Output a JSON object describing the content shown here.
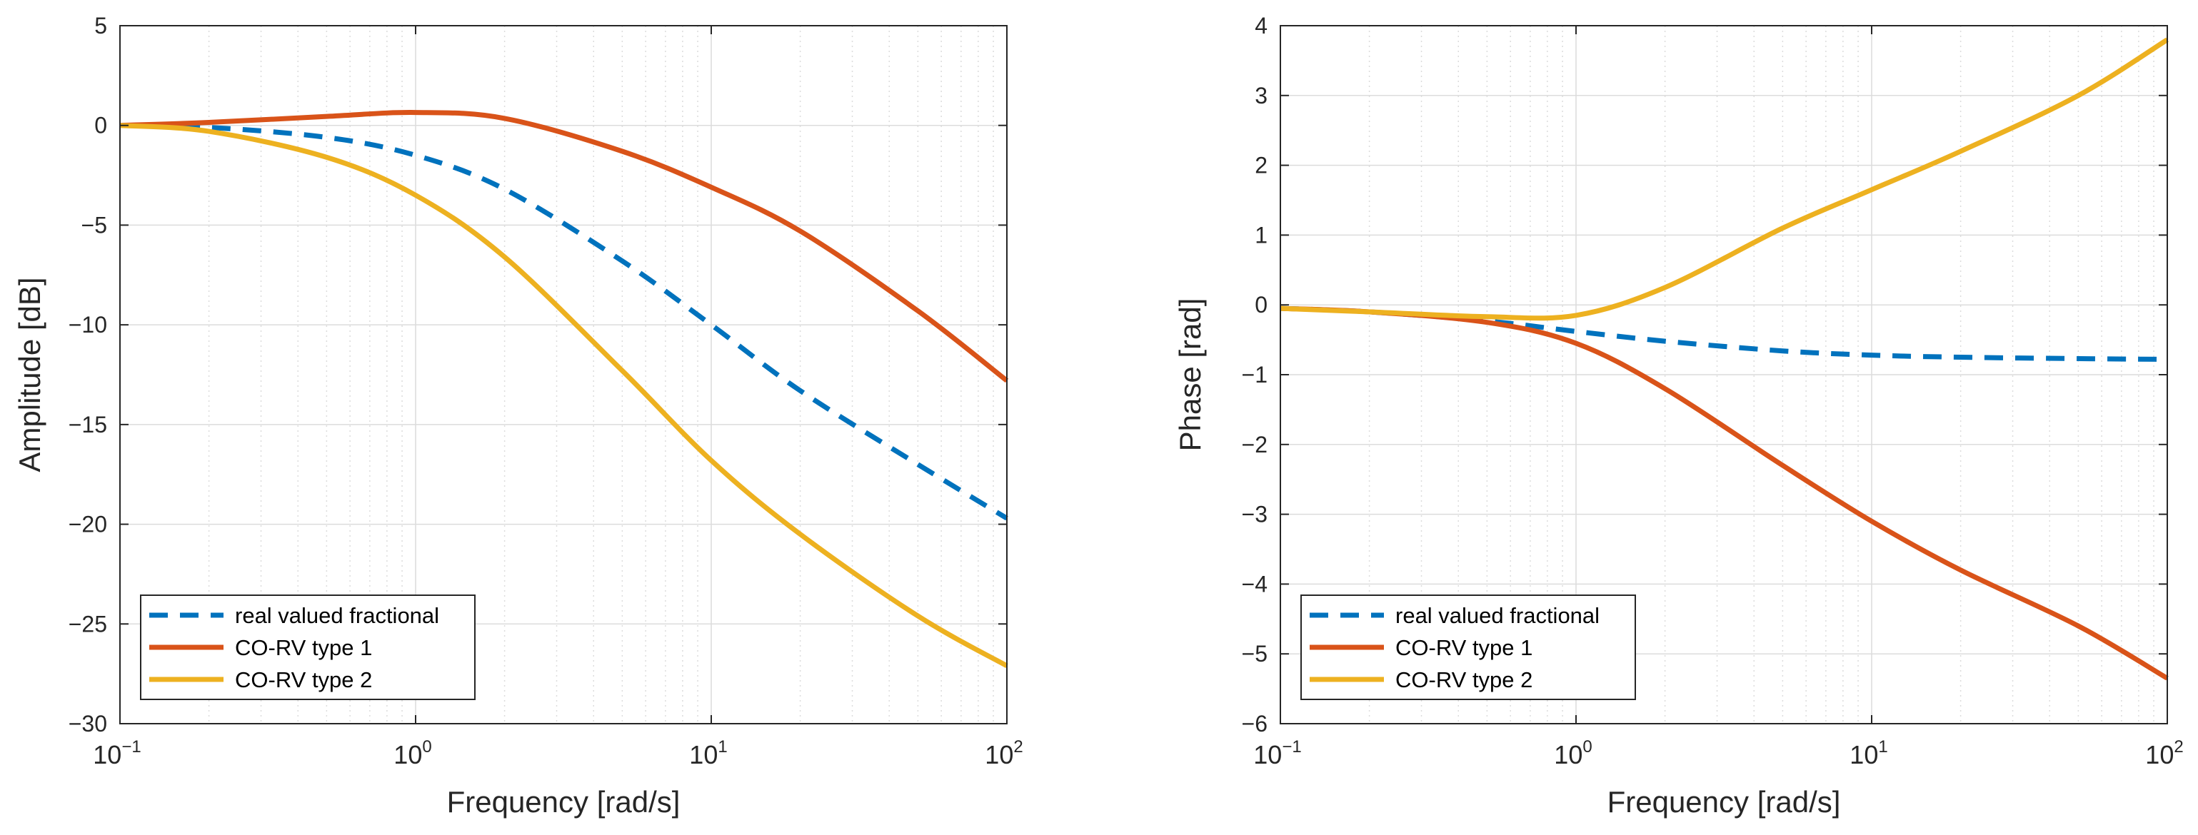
{
  "chart_data": [
    {
      "type": "line",
      "xscale": "log",
      "xlim": [
        0.1,
        100
      ],
      "ylim": [
        -30,
        5
      ],
      "xticks": [
        0.1,
        1,
        10,
        100
      ],
      "xtick_labels": [
        {
          "base": "10",
          "exp": "−1"
        },
        {
          "base": "10",
          "exp": "0"
        },
        {
          "base": "10",
          "exp": "1"
        },
        {
          "base": "10",
          "exp": "2"
        }
      ],
      "yticks": [
        5,
        0,
        -5,
        -10,
        -15,
        -20,
        -25,
        -30
      ],
      "ytick_labels": [
        "5",
        "0",
        "−5",
        "−10",
        "−15",
        "−20",
        "−25",
        "−30"
      ],
      "xlabel": "Frequency [rad/s]",
      "ylabel": "Amplitude [dB]",
      "grid": true,
      "legend_position": "bottom-left",
      "x": [
        0.1,
        0.2,
        0.5,
        1,
        2,
        5,
        10,
        20,
        50,
        100
      ],
      "series": [
        {
          "name": "real valued fractional",
          "color": "#0072BD",
          "style": "dashed",
          "values": [
            0,
            -0.1,
            -0.6,
            -1.5,
            -3.2,
            -6.8,
            -10.0,
            -13.3,
            -17.0,
            -19.7
          ]
        },
        {
          "name": "CO-RV type 1",
          "color": "#D95319",
          "style": "solid",
          "values": [
            0,
            0.15,
            0.45,
            0.65,
            0.35,
            -1.3,
            -3.1,
            -5.3,
            -9.3,
            -12.8
          ]
        },
        {
          "name": "CO-RV type 2",
          "color": "#EDB120",
          "style": "solid",
          "values": [
            0,
            -0.3,
            -1.6,
            -3.5,
            -6.6,
            -12.3,
            -16.8,
            -20.5,
            -24.6,
            -27.1
          ]
        }
      ]
    },
    {
      "type": "line",
      "xscale": "log",
      "xlim": [
        0.1,
        100
      ],
      "ylim": [
        -6,
        4
      ],
      "xticks": [
        0.1,
        1,
        10,
        100
      ],
      "xtick_labels": [
        {
          "base": "10",
          "exp": "−1"
        },
        {
          "base": "10",
          "exp": "0"
        },
        {
          "base": "10",
          "exp": "1"
        },
        {
          "base": "10",
          "exp": "2"
        }
      ],
      "yticks": [
        4,
        3,
        2,
        1,
        0,
        -1,
        -2,
        -3,
        -4,
        -5,
        -6
      ],
      "ytick_labels": [
        "4",
        "3",
        "2",
        "1",
        "0",
        "−1",
        "−2",
        "−3",
        "−4",
        "−5",
        "−6"
      ],
      "xlabel": "Frequency [rad/s]",
      "ylabel": "Phase [rad]",
      "grid": true,
      "legend_position": "bottom-left",
      "x": [
        0.1,
        0.2,
        0.5,
        1,
        2,
        5,
        10,
        20,
        50,
        100
      ],
      "series": [
        {
          "name": "real valued fractional",
          "color": "#0072BD",
          "style": "dashed",
          "values": [
            -0.05,
            -0.1,
            -0.23,
            -0.38,
            -0.52,
            -0.66,
            -0.72,
            -0.75,
            -0.77,
            -0.78
          ]
        },
        {
          "name": "CO-RV type 1",
          "color": "#D95319",
          "style": "solid",
          "values": [
            -0.05,
            -0.1,
            -0.25,
            -0.55,
            -1.2,
            -2.3,
            -3.1,
            -3.8,
            -4.6,
            -5.35
          ]
        },
        {
          "name": "CO-RV type 2",
          "color": "#EDB120",
          "style": "solid",
          "values": [
            -0.05,
            -0.1,
            -0.17,
            -0.15,
            0.25,
            1.1,
            1.65,
            2.2,
            3.0,
            3.8
          ]
        }
      ]
    }
  ]
}
